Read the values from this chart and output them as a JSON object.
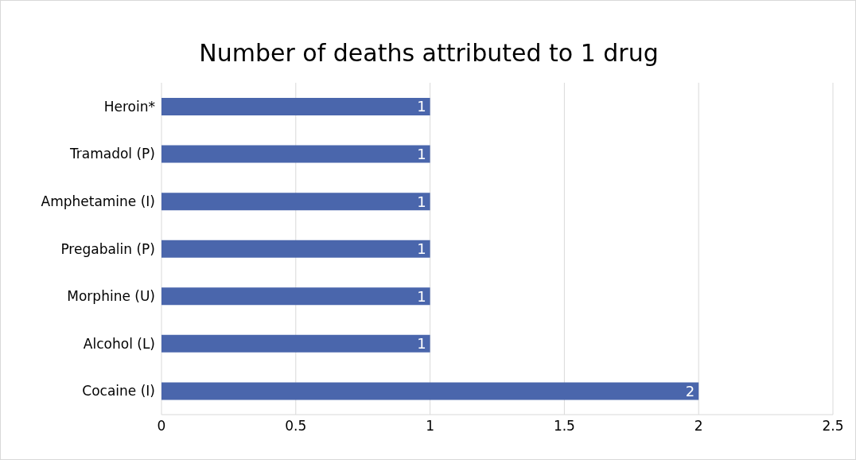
{
  "chart_data": {
    "type": "bar",
    "orientation": "horizontal",
    "title": "Number of deaths attributed to 1 drug",
    "categories": [
      "Heroin*",
      "Tramadol (P)",
      "Amphetamine (I)",
      "Pregabalin (P)",
      "Morphine (U)",
      "Alcohol (L)",
      "Cocaine (I)"
    ],
    "values": [
      1,
      1,
      1,
      1,
      1,
      1,
      2
    ],
    "color": "#4a66ac",
    "xlim": [
      0,
      2.5
    ],
    "xticks": [
      0,
      0.5,
      1,
      1.5,
      2,
      2.5
    ],
    "grid": "x",
    "data_labels": true
  }
}
